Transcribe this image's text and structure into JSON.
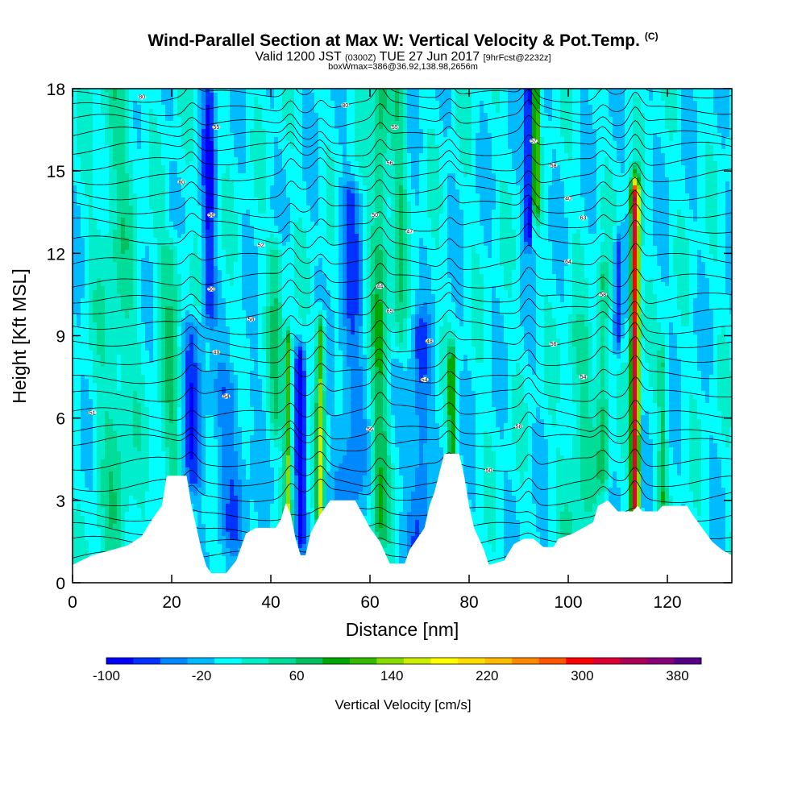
{
  "header": {
    "title": "Wind-Parallel Section at Max W: Vertical Velocity & Pot.Temp.",
    "copyright": "(C)",
    "valid_prefix": "Valid 1200 JST",
    "valid_utc": "(0300Z)",
    "valid_date": "TUE 27 Jun 2017",
    "forecast": "[9hrFcst@2232z]",
    "subtitle2": "boxWmax=386@36.92,138.98,2656m"
  },
  "chart_data": {
    "type": "heatmap",
    "xlabel": "Distance [nm]",
    "ylabel": "Height [Kft MSL]",
    "xlim": [
      0,
      133
    ],
    "ylim": [
      0,
      18
    ],
    "x_ticks": [
      0,
      20,
      40,
      60,
      80,
      100,
      120
    ],
    "y_ticks": [
      0,
      3,
      6,
      9,
      12,
      15,
      18
    ],
    "colorbar": {
      "label": "Vertical Velocity [cm/s]",
      "tick_labels": [
        "-100",
        "-20",
        "60",
        "140",
        "220",
        "300",
        "380"
      ],
      "tick_values": [
        -100,
        -20,
        60,
        140,
        220,
        300,
        380
      ],
      "range": [
        -100,
        400
      ],
      "colors": [
        "#0000ff",
        "#0033ff",
        "#0088ff",
        "#00bbff",
        "#00ffff",
        "#00eecc",
        "#00dd99",
        "#00c060",
        "#00a800",
        "#33bb00",
        "#88dd00",
        "#ccee00",
        "#ffff00",
        "#ffdd00",
        "#ffbb00",
        "#ff8800",
        "#ff5500",
        "#ff0000",
        "#dd0033",
        "#aa0055",
        "#880077",
        "#550088"
      ]
    },
    "background_updraft_cms": 0,
    "velocity_features": [
      {
        "x": 9,
        "z_min": 0.5,
        "z_max": 18,
        "w": 40,
        "width": 4
      },
      {
        "x": 20,
        "z_min": 2,
        "z_max": 12,
        "w": 50,
        "width": 2.5
      },
      {
        "x": 24,
        "z_min": 4,
        "z_max": 9,
        "w": -60,
        "width": 2.5
      },
      {
        "x": 27.5,
        "z_min": 10,
        "z_max": 18,
        "w": -70,
        "width": 1.3
      },
      {
        "x": 32,
        "z_min": 2,
        "z_max": 7,
        "w": -40,
        "width": 4
      },
      {
        "x": 41,
        "z_min": 6,
        "z_max": 12,
        "w": 50,
        "width": 1.5
      },
      {
        "x": 43.5,
        "z_min": 2,
        "z_max": 8.5,
        "w": 130,
        "width": 0.7
      },
      {
        "x": 46,
        "z_min": 2,
        "z_max": 8,
        "w": -100,
        "width": 1.0
      },
      {
        "x": 50,
        "z_min": 2.5,
        "z_max": 9,
        "w": 140,
        "width": 0.8
      },
      {
        "x": 56,
        "z_min": 3,
        "z_max": 14,
        "w": -50,
        "width": 2.5
      },
      {
        "x": 62,
        "z_min": 2,
        "z_max": 18,
        "w": 70,
        "width": 1.8
      },
      {
        "x": 66,
        "z_min": 9,
        "z_max": 18,
        "w": 50,
        "width": 1.5
      },
      {
        "x": 70,
        "z_min": 1,
        "z_max": 9,
        "w": -60,
        "width": 2.0
      },
      {
        "x": 76.5,
        "z_min": 4.5,
        "z_max": 8,
        "w": 100,
        "width": 0.7
      },
      {
        "x": 92,
        "z_min": 13,
        "z_max": 18,
        "w": -100,
        "width": 0.8
      },
      {
        "x": 93.5,
        "z_min": 14,
        "z_max": 18,
        "w": 150,
        "width": 0.6
      },
      {
        "x": 102,
        "z_min": 2,
        "z_max": 9,
        "w": 40,
        "width": 3
      },
      {
        "x": 107,
        "z_min": 4,
        "z_max": 11,
        "w": 70,
        "width": 1.2
      },
      {
        "x": 110,
        "z_min": 9,
        "z_max": 12,
        "w": -80,
        "width": 0.8
      },
      {
        "x": 113.5,
        "z_min": 3,
        "z_max": 14,
        "w": 330,
        "width": 0.8
      },
      {
        "x": 119,
        "z_min": 3,
        "z_max": 8,
        "w": 60,
        "width": 0.8
      }
    ],
    "terrain_kft": [
      [
        0,
        0.65
      ],
      [
        4,
        1.0
      ],
      [
        11,
        1.35
      ],
      [
        14,
        1.7
      ],
      [
        16,
        2.3
      ],
      [
        18,
        2.8
      ],
      [
        19,
        3.9
      ],
      [
        23,
        3.9
      ],
      [
        24,
        2.8
      ],
      [
        25,
        2.0
      ],
      [
        26,
        1.2
      ],
      [
        27,
        0.6
      ],
      [
        28,
        0.35
      ],
      [
        31,
        0.35
      ],
      [
        33,
        0.8
      ],
      [
        35,
        1.8
      ],
      [
        37,
        2.0
      ],
      [
        41,
        2.0
      ],
      [
        42,
        2.3
      ],
      [
        43,
        2.9
      ],
      [
        44,
        2.5
      ],
      [
        45,
        1.6
      ],
      [
        46,
        1.0
      ],
      [
        47,
        1.0
      ],
      [
        48,
        1.8
      ],
      [
        50,
        2.5
      ],
      [
        52,
        3.0
      ],
      [
        57,
        3.0
      ],
      [
        60,
        2.0
      ],
      [
        62,
        1.5
      ],
      [
        64,
        0.7
      ],
      [
        67,
        0.7
      ],
      [
        68,
        1.2
      ],
      [
        71,
        2.0
      ],
      [
        72,
        2.8
      ],
      [
        73,
        3.3
      ],
      [
        74,
        4.0
      ],
      [
        75,
        4.7
      ],
      [
        78,
        4.7
      ],
      [
        79,
        3.9
      ],
      [
        80,
        2.8
      ],
      [
        81,
        2.0
      ],
      [
        83,
        1.2
      ],
      [
        84,
        0.65
      ],
      [
        87,
        0.8
      ],
      [
        89,
        1.4
      ],
      [
        91,
        1.6
      ],
      [
        93,
        1.6
      ],
      [
        95,
        1.3
      ],
      [
        97,
        1.3
      ],
      [
        98,
        1.6
      ],
      [
        101,
        1.8
      ],
      [
        103,
        2.0
      ],
      [
        105,
        2.2
      ],
      [
        106,
        2.8
      ],
      [
        108,
        3.0
      ],
      [
        109,
        2.8
      ],
      [
        110,
        2.6
      ],
      [
        113,
        2.6
      ],
      [
        114,
        2.8
      ],
      [
        115,
        2.6
      ],
      [
        118,
        2.6
      ],
      [
        119,
        2.8
      ],
      [
        124,
        2.8
      ],
      [
        125,
        2.5
      ],
      [
        127,
        2.0
      ],
      [
        129,
        1.5
      ],
      [
        131,
        1.2
      ],
      [
        133,
        1.0
      ]
    ],
    "isentrope_labels": [
      {
        "x": 14,
        "y": 17.7,
        "text": "80"
      },
      {
        "x": 29,
        "y": 16.6,
        "text": "55"
      },
      {
        "x": 22,
        "y": 14.6,
        "text": "80"
      },
      {
        "x": 28,
        "y": 13.4,
        "text": "56"
      },
      {
        "x": 38,
        "y": 12.3,
        "text": "52"
      },
      {
        "x": 28,
        "y": 10.7,
        "text": "50"
      },
      {
        "x": 36,
        "y": 9.6,
        "text": "58"
      },
      {
        "x": 29,
        "y": 8.4,
        "text": "49"
      },
      {
        "x": 31,
        "y": 6.8,
        "text": "54"
      },
      {
        "x": 4,
        "y": 6.2,
        "text": "51"
      },
      {
        "x": 55,
        "y": 17.4,
        "text": "80"
      },
      {
        "x": 65,
        "y": 16.6,
        "text": "55"
      },
      {
        "x": 64,
        "y": 15.3,
        "text": "56"
      },
      {
        "x": 61,
        "y": 13.4,
        "text": "50"
      },
      {
        "x": 68,
        "y": 12.8,
        "text": "47"
      },
      {
        "x": 62,
        "y": 10.8,
        "text": "44"
      },
      {
        "x": 64,
        "y": 9.9,
        "text": "65"
      },
      {
        "x": 72,
        "y": 8.8,
        "text": "48"
      },
      {
        "x": 71,
        "y": 7.4,
        "text": "54"
      },
      {
        "x": 60,
        "y": 5.6,
        "text": "56"
      },
      {
        "x": 93,
        "y": 16.1,
        "text": "57"
      },
      {
        "x": 97,
        "y": 15.2,
        "text": "58"
      },
      {
        "x": 100,
        "y": 14.0,
        "text": "40"
      },
      {
        "x": 103,
        "y": 13.3,
        "text": "63"
      },
      {
        "x": 100,
        "y": 11.7,
        "text": "64"
      },
      {
        "x": 107,
        "y": 10.5,
        "text": "58"
      },
      {
        "x": 97,
        "y": 8.7,
        "text": "56"
      },
      {
        "x": 103,
        "y": 7.5,
        "text": "54"
      },
      {
        "x": 90,
        "y": 5.7,
        "text": "58"
      },
      {
        "x": 84,
        "y": 4.1,
        "text": "50"
      }
    ],
    "isentrope_levels_kft": [
      0.9,
      1.4,
      1.9,
      2.5,
      3.1,
      3.6,
      4.3,
      5.1,
      5.5,
      6.2,
      6.9,
      7.5,
      8.1,
      8.7,
      9.3,
      9.9,
      10.4,
      11.0,
      11.7,
      12.4,
      13.0,
      13.6,
      14.2,
      14.8,
      15.3,
      15.8,
      16.3,
      16.8,
      17.3,
      17.8
    ]
  }
}
